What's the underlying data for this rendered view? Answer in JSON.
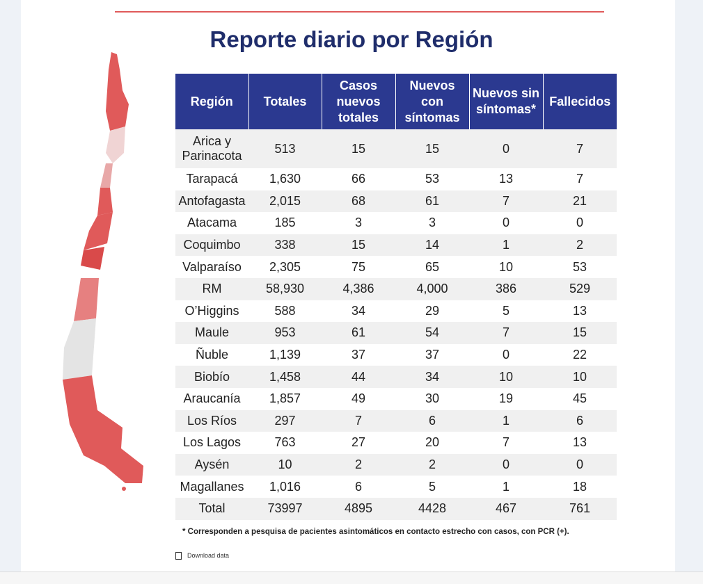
{
  "title": "Reporte diario por Región",
  "table": {
    "header": [
      "Región",
      "Totales",
      "Casos nuevos totales",
      "Nuevos con síntomas",
      "Nuevos sin síntomas*",
      "Fallecidos"
    ],
    "rows": [
      [
        "Arica y Parinacota",
        "513",
        "15",
        "15",
        "0",
        "7"
      ],
      [
        "Tarapacá",
        "1,630",
        "66",
        "53",
        "13",
        "7"
      ],
      [
        "Antofagasta",
        "2,015",
        "68",
        "61",
        "7",
        "21"
      ],
      [
        "Atacama",
        "185",
        "3",
        "3",
        "0",
        "0"
      ],
      [
        "Coquimbo",
        "338",
        "15",
        "14",
        "1",
        "2"
      ],
      [
        "Valparaíso",
        "2,305",
        "75",
        "65",
        "10",
        "53"
      ],
      [
        "RM",
        "58,930",
        "4,386",
        "4,000",
        "386",
        "529"
      ],
      [
        "O’Higgins",
        "588",
        "34",
        "29",
        "5",
        "13"
      ],
      [
        "Maule",
        "953",
        "61",
        "54",
        "7",
        "15"
      ],
      [
        "Ñuble",
        "1,139",
        "37",
        "37",
        "0",
        "22"
      ],
      [
        "Biobío",
        "1,458",
        "44",
        "34",
        "10",
        "10"
      ],
      [
        "Araucanía",
        "1,857",
        "49",
        "30",
        "19",
        "45"
      ],
      [
        "Los Ríos",
        "297",
        "7",
        "6",
        "1",
        "6"
      ],
      [
        "Los Lagos",
        "763",
        "27",
        "20",
        "7",
        "13"
      ],
      [
        "Aysén",
        "10",
        "2",
        "2",
        "0",
        "0"
      ],
      [
        "Magallanes",
        "1,016",
        "6",
        "5",
        "1",
        "18"
      ],
      [
        "Total",
        "73997",
        "4895",
        "4428",
        "467",
        "761"
      ]
    ]
  },
  "footnote": "* Corresponden a pesquisa de pacientes asintomáticos en contacto estrecho con casos, con PCR (+).",
  "download": "Download data"
}
